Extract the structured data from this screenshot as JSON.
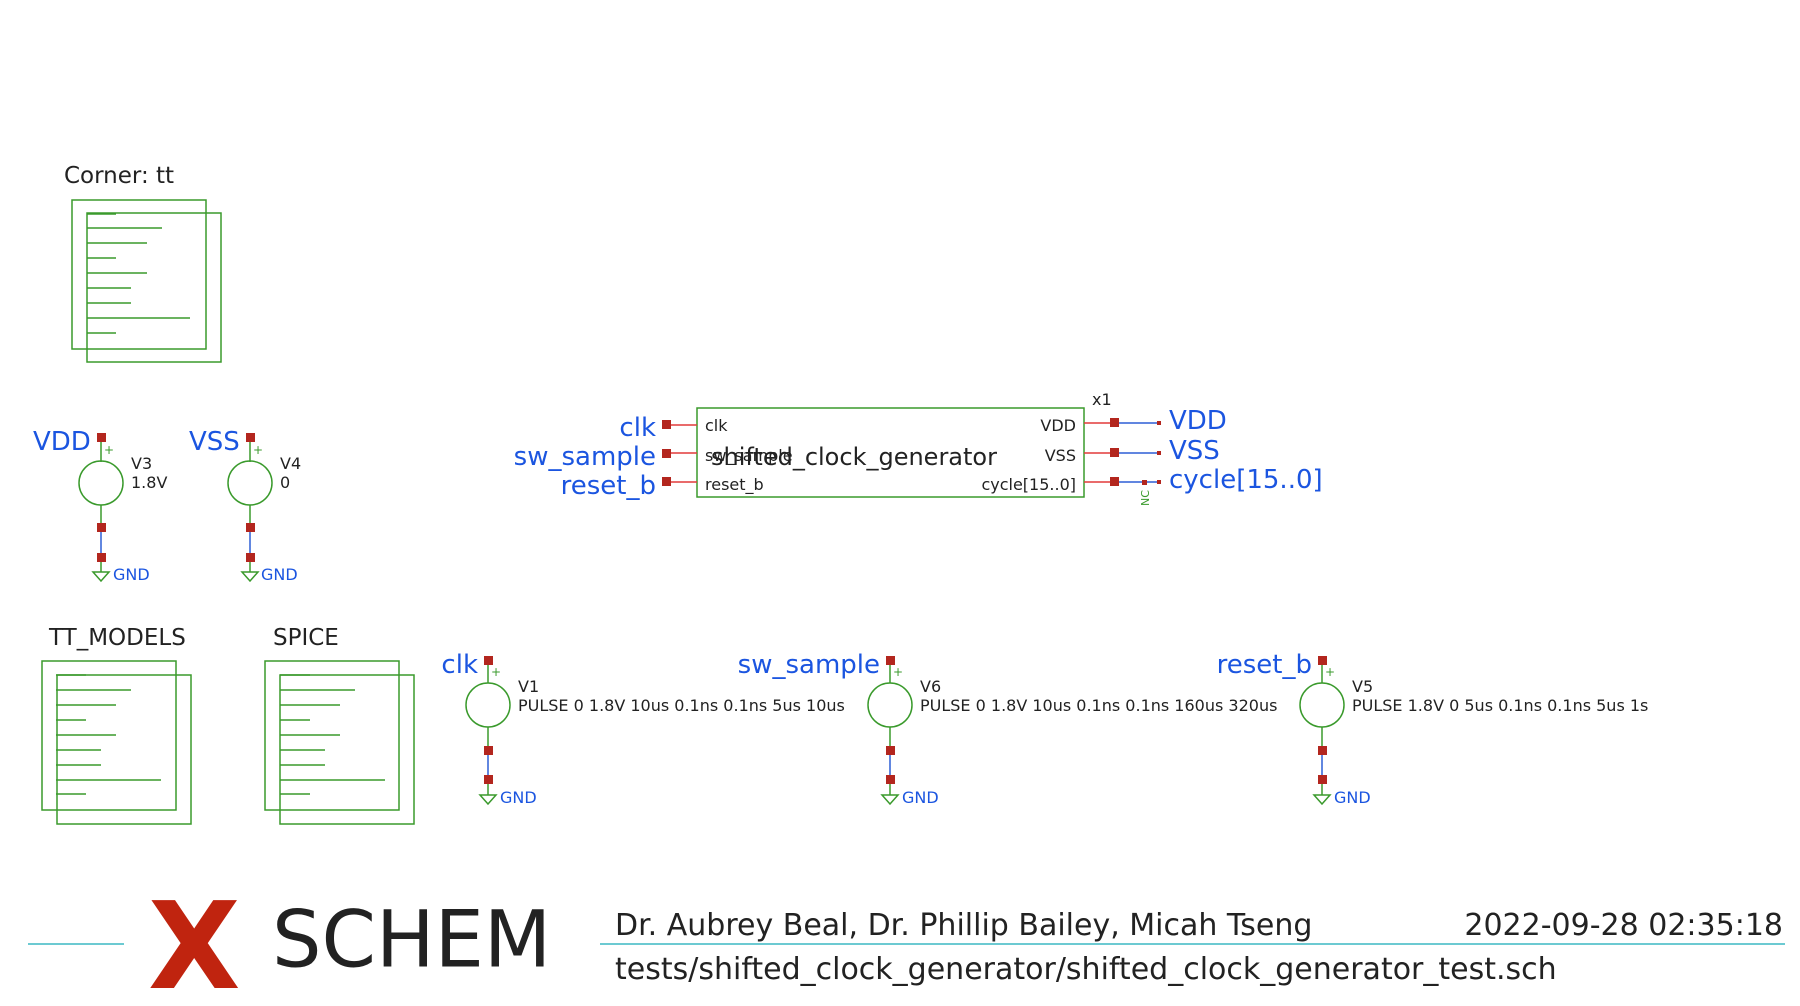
{
  "app": "xschem",
  "corner_box": {
    "label": "Corner: tt"
  },
  "models_box": {
    "label": "TT_MODELS"
  },
  "spice_box": {
    "label": "SPICE"
  },
  "supplies": [
    {
      "net": "VDD",
      "name": "V3",
      "value": "1.8V",
      "gnd": "GND"
    },
    {
      "net": "VSS",
      "name": "V4",
      "value": "0",
      "gnd": "GND"
    }
  ],
  "subcircuit": {
    "instance": "x1",
    "symbol": "shifted_clock_generator",
    "left_pins": [
      "clk",
      "sw_sample",
      "reset_b"
    ],
    "right_pins": [
      "VDD",
      "VSS",
      "cycle[15..0]"
    ],
    "nc_label": "NC"
  },
  "net_labels": {
    "left": [
      "clk",
      "sw_sample",
      "reset_b"
    ],
    "right": [
      "VDD",
      "VSS",
      "cycle[15..0]"
    ]
  },
  "sources": [
    {
      "net": "clk",
      "name": "V1",
      "value": "PULSE 0 1.8V 10us 0.1ns 0.1ns 5us 10us",
      "gnd": "GND"
    },
    {
      "net": "sw_sample",
      "name": "V6",
      "value": "PULSE 0 1.8V 10us 0.1ns 0.1ns 160us 320us",
      "gnd": "GND"
    },
    {
      "net": "reset_b",
      "name": "V5",
      "value": "PULSE 1.8V 0 5us 0.1ns 0.1ns 5us 1s",
      "gnd": "GND"
    }
  ],
  "title_block": {
    "logo_x": "X",
    "logo_text": "SCHEM",
    "authors": "Dr. Aubrey Beal, Dr. Phillip Bailey, Micah Tseng",
    "datetime": "2022-09-28  02:35:18",
    "path": "tests/shifted_clock_generator/shifted_clock_generator_test.sch"
  },
  "colors": {
    "net_label": "#1b55e0",
    "symbol": "#3a9a2c",
    "pin": "#b3261e",
    "wire": "#2d5fd6",
    "logo_red": "#c0240f",
    "title_rule": "#3cb9c4"
  }
}
